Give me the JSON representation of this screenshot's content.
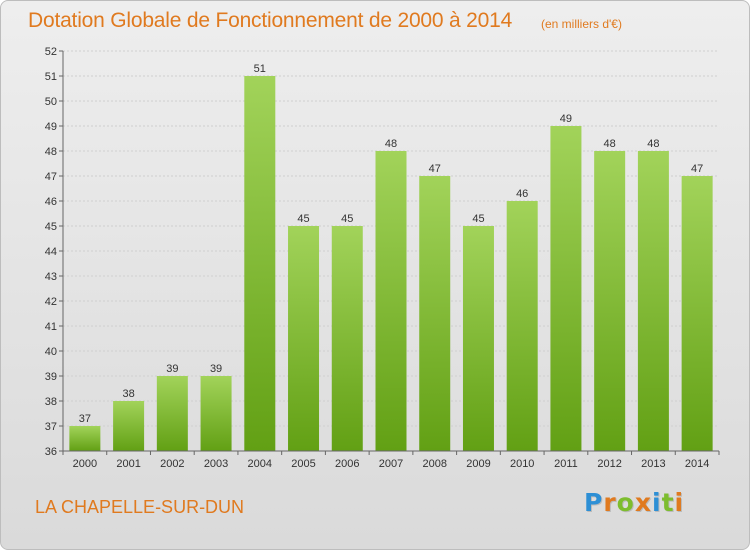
{
  "chart_data": {
    "type": "bar",
    "title": "Dotation Globale de Fonctionnement de 2000 à 2014",
    "subtitle": "(en milliers d'€)",
    "categories": [
      "2000",
      "2001",
      "2002",
      "2003",
      "2004",
      "2005",
      "2006",
      "2007",
      "2008",
      "2009",
      "2010",
      "2011",
      "2012",
      "2013",
      "2014"
    ],
    "values": [
      37,
      38,
      39,
      39,
      51,
      45,
      45,
      48,
      47,
      45,
      46,
      49,
      48,
      48,
      47
    ],
    "xlabel": "",
    "ylabel": "",
    "ylim": [
      36,
      52
    ],
    "yticks": [
      36,
      37,
      38,
      39,
      40,
      41,
      42,
      43,
      44,
      45,
      46,
      47,
      48,
      49,
      50,
      51,
      52
    ],
    "grid": true,
    "legend": "none",
    "bar_color": "#7dbd2e",
    "bar_color_light": "#a2d35a",
    "bar_color_dark": "#62a014"
  },
  "footer": {
    "commune": "LA CHAPELLE-SUR-DUN",
    "brand_letters": [
      {
        "char": "P",
        "color": "#2d8fd5"
      },
      {
        "char": "r",
        "color": "#e07a1f"
      },
      {
        "char": "o",
        "color": "#7dbd2e"
      },
      {
        "char": "x",
        "color": "#e07a1f"
      },
      {
        "char": "i",
        "color": "#2d8fd5"
      },
      {
        "char": "t",
        "color": "#7dbd2e"
      },
      {
        "char": "i",
        "color": "#e07a1f"
      }
    ]
  },
  "colors": {
    "accent": "#e07a1f"
  }
}
